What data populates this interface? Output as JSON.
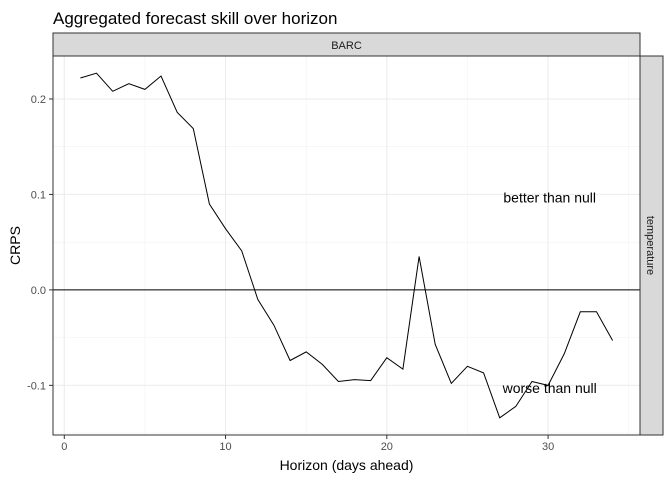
{
  "chart_data": {
    "type": "line",
    "title": "Aggregated forecast skill over horizon",
    "facet_top": "BARC",
    "facet_right": "temperature",
    "xlabel": "Horizon (days ahead)",
    "ylabel": "CRPS",
    "xlim": [
      -0.7,
      35.7
    ],
    "ylim": [
      -0.152,
      0.245
    ],
    "x_ticks": [
      0,
      10,
      20,
      30
    ],
    "y_ticks": [
      -0.1,
      0.0,
      0.1,
      0.2
    ],
    "x_tick_labels": [
      "0",
      "10",
      "20",
      "30"
    ],
    "y_tick_labels": [
      "-0.1",
      "0.0",
      "0.1",
      "0.2"
    ],
    "hline": 0,
    "grid": true,
    "series": [
      {
        "x": [
          1,
          2,
          3,
          4,
          5,
          6,
          7,
          8,
          9,
          10,
          11,
          12,
          13,
          14,
          15,
          16,
          17,
          18,
          19,
          20,
          21,
          22,
          23,
          24,
          25,
          26,
          27,
          28,
          29,
          30,
          31,
          32,
          33,
          34
        ],
        "y": [
          0.222,
          0.227,
          0.208,
          0.216,
          0.21,
          0.224,
          0.186,
          0.169,
          0.09,
          0.064,
          0.041,
          -0.01,
          -0.037,
          -0.074,
          -0.065,
          -0.078,
          -0.096,
          -0.094,
          -0.095,
          -0.071,
          -0.083,
          0.035,
          -0.057,
          -0.098,
          -0.08,
          -0.087,
          -0.134,
          -0.122,
          -0.096,
          -0.1,
          -0.067,
          -0.023,
          -0.023,
          -0.053
        ]
      }
    ],
    "annotations": [
      {
        "text": "better than null",
        "x": 30.1,
        "y": 0.097
      },
      {
        "text": "worse than null",
        "x": 30.1,
        "y": -0.103
      }
    ]
  }
}
